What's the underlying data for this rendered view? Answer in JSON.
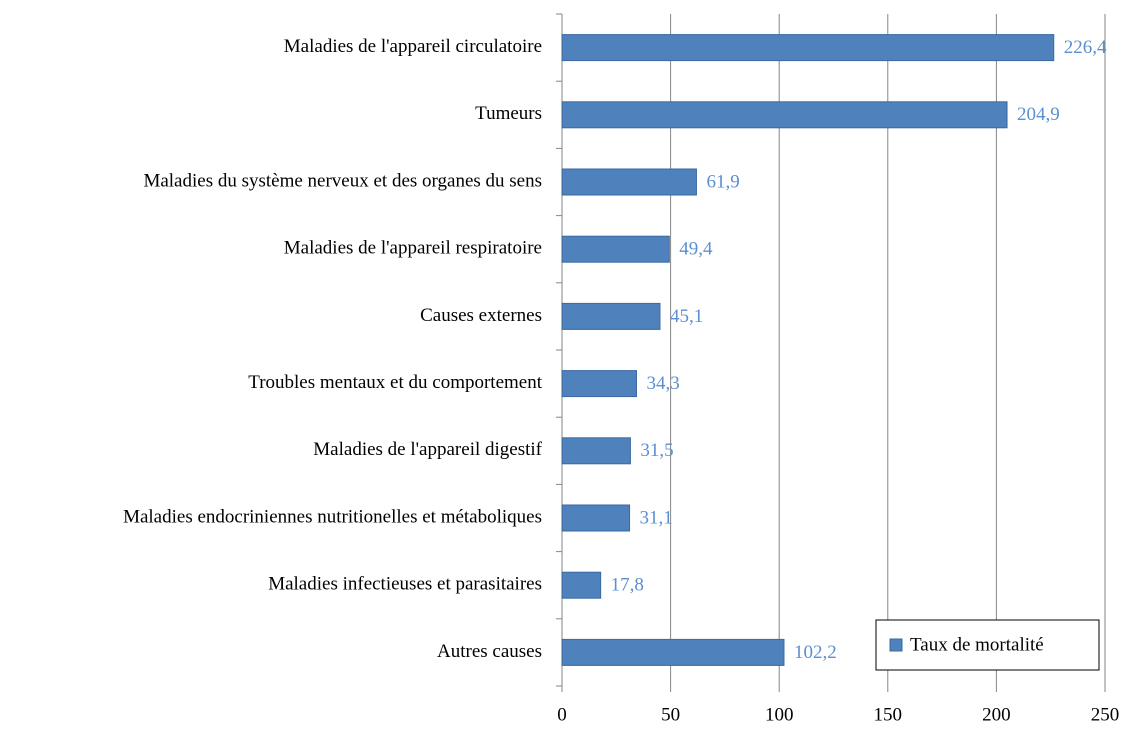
{
  "chart_data": {
    "type": "bar",
    "orientation": "horizontal",
    "categories": [
      "Maladies de l'appareil circulatoire",
      "Tumeurs",
      "Maladies du système nerveux et des organes du sens",
      "Maladies de l'appareil respiratoire",
      "Causes externes",
      "Troubles mentaux et du comportement",
      "Maladies de l'appareil digestif",
      "Maladies endocriniennes nutritionelles et métaboliques",
      "Maladies infectieuses et parasitaires",
      "Autres causes"
    ],
    "series": [
      {
        "name": "Taux de mortalité",
        "color": "#4f81bd",
        "values": [
          226.4,
          204.9,
          61.9,
          49.4,
          45.1,
          34.3,
          31.5,
          31.1,
          17.8,
          102.2
        ],
        "value_labels": [
          "226,4",
          "204,9",
          "61,9",
          "49,4",
          "45,1",
          "34,3",
          "31,5",
          "31,1",
          "17,8",
          "102,2"
        ]
      }
    ],
    "xlim": [
      0,
      250
    ],
    "xticks": [
      0,
      50,
      100,
      150,
      200,
      250
    ],
    "grid": true,
    "legend": "lower right"
  }
}
